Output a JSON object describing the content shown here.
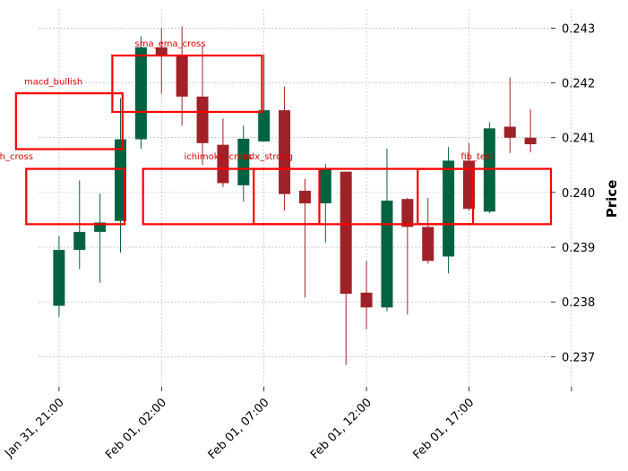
{
  "chart_data": {
    "type": "candlestick",
    "title": "",
    "xlabel": "",
    "ylabel": "Price",
    "ylim": [
      0.23645,
      0.24335
    ],
    "xlim_hours": [
      -1,
      24
    ],
    "grid": true,
    "y_axis_side": "right",
    "x_ticks": [
      "Jan 31, 21:00",
      "Feb 01, 02:00",
      "Feb 01, 07:00",
      "Feb 01, 12:00",
      "Feb 01, 17:00",
      ""
    ],
    "x_tick_hours": [
      0,
      5,
      10,
      15,
      20,
      25
    ],
    "y_ticks": [
      0.237,
      0.238,
      0.239,
      0.24,
      0.241,
      0.242,
      0.243
    ],
    "colors": {
      "up": "#006340",
      "down": "#a02128",
      "zone": "#ff0000",
      "zone_label": "#e00000",
      "grid": "#b0b0b0"
    },
    "candles": [
      {
        "time": "Jan 31, 21:00",
        "open": 0.23793,
        "high": 0.2392,
        "low": 0.23773,
        "close": 0.23895
      },
      {
        "time": "Jan 31, 22:00",
        "open": 0.23895,
        "high": 0.24022,
        "low": 0.2386,
        "close": 0.23928
      },
      {
        "time": "Jan 31, 23:00",
        "open": 0.23928,
        "high": 0.23998,
        "low": 0.23835,
        "close": 0.23945
      },
      {
        "time": "Feb 01, 00:00",
        "open": 0.23948,
        "high": 0.24172,
        "low": 0.2389,
        "close": 0.24097
      },
      {
        "time": "Feb 01, 01:00",
        "open": 0.24097,
        "high": 0.24285,
        "low": 0.2408,
        "close": 0.24265
      },
      {
        "time": "Feb 01, 02:00",
        "open": 0.24265,
        "high": 0.243,
        "low": 0.2418,
        "close": 0.2425
      },
      {
        "time": "Feb 01, 03:00",
        "open": 0.2425,
        "high": 0.24303,
        "low": 0.24122,
        "close": 0.24175
      },
      {
        "time": "Feb 01, 04:00",
        "open": 0.24175,
        "high": 0.24267,
        "low": 0.2405,
        "close": 0.2409
      },
      {
        "time": "Feb 01, 05:00",
        "open": 0.24087,
        "high": 0.24135,
        "low": 0.2401,
        "close": 0.24017
      },
      {
        "time": "Feb 01, 06:00",
        "open": 0.24013,
        "high": 0.24122,
        "low": 0.23983,
        "close": 0.24098
      },
      {
        "time": "Feb 01, 07:00",
        "open": 0.24093,
        "high": 0.24252,
        "low": 0.24093,
        "close": 0.2415
      },
      {
        "time": "Feb 01, 08:00",
        "open": 0.2415,
        "high": 0.24193,
        "low": 0.23967,
        "close": 0.23997
      },
      {
        "time": "Feb 01, 09:00",
        "open": 0.24003,
        "high": 0.24025,
        "low": 0.23808,
        "close": 0.2398
      },
      {
        "time": "Feb 01, 10:00",
        "open": 0.2398,
        "high": 0.24052,
        "low": 0.23908,
        "close": 0.24043
      },
      {
        "time": "Feb 01, 11:00",
        "open": 0.24038,
        "high": 0.24038,
        "low": 0.23685,
        "close": 0.23815
      },
      {
        "time": "Feb 01, 12:00",
        "open": 0.23817,
        "high": 0.23875,
        "low": 0.2375,
        "close": 0.2379
      },
      {
        "time": "Feb 01, 13:00",
        "open": 0.2379,
        "high": 0.2408,
        "low": 0.23783,
        "close": 0.23985
      },
      {
        "time": "Feb 01, 14:00",
        "open": 0.23988,
        "high": 0.2399,
        "low": 0.23777,
        "close": 0.23937
      },
      {
        "time": "Feb 01, 15:00",
        "open": 0.23937,
        "high": 0.2399,
        "low": 0.2387,
        "close": 0.23875
      },
      {
        "time": "Feb 01, 16:00",
        "open": 0.23883,
        "high": 0.24083,
        "low": 0.23852,
        "close": 0.24058
      },
      {
        "time": "Feb 01, 17:00",
        "open": 0.24058,
        "high": 0.2409,
        "low": 0.23967,
        "close": 0.2397
      },
      {
        "time": "Feb 01, 18:00",
        "open": 0.23965,
        "high": 0.24128,
        "low": 0.23962,
        "close": 0.24117
      },
      {
        "time": "Feb 01, 19:00",
        "open": 0.2412,
        "high": 0.2421,
        "low": 0.24072,
        "close": 0.241
      },
      {
        "time": "Feb 01, 20:00",
        "open": 0.241,
        "high": 0.24152,
        "low": 0.24073,
        "close": 0.24088
      }
    ],
    "zones": [
      {
        "label": "macd_bullish",
        "start_hour": -2.1,
        "end_hour": 3.1,
        "top": 0.24181,
        "bottom": 0.24079,
        "label_price": 0.24197,
        "label_hour": -1.7
      },
      {
        "label": "sma_ema_cross",
        "start_hour": 2.6,
        "end_hour": 9.9,
        "top": 0.2425,
        "bottom": 0.24147,
        "label_price": 0.24266,
        "label_hour": 3.7
      },
      {
        "label": "stoch_cross",
        "start_hour": -1.6,
        "end_hour": 3.2,
        "top": 0.24043,
        "bottom": 0.23942,
        "label_price": 0.2406,
        "label_hour": -3.8
      },
      {
        "label": "ichimoku_cross",
        "start_hour": 4.1,
        "end_hour": 12.7,
        "top": 0.24043,
        "bottom": 0.23942,
        "label_price": 0.2406,
        "label_hour": 6.1
      },
      {
        "label": "adx_strong",
        "start_hour": 9.5,
        "end_hour": 20.2,
        "top": 0.24043,
        "bottom": 0.23942,
        "label_price": 0.2406,
        "label_hour": 9.0
      },
      {
        "label": "fib_test",
        "start_hour": 17.5,
        "end_hour": 26.0,
        "top": 0.24043,
        "bottom": 0.23942,
        "label_price": 0.2406,
        "label_hour": 19.6
      }
    ]
  }
}
